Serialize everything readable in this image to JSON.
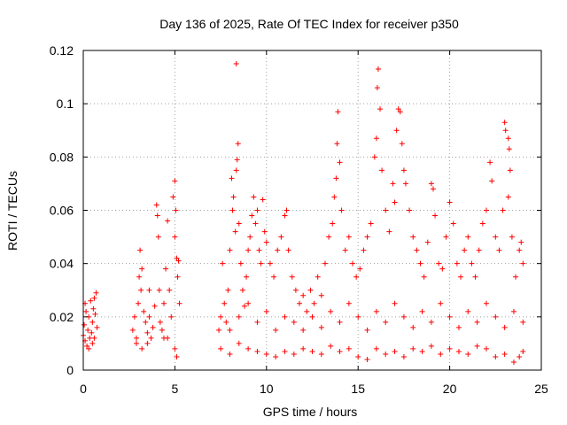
{
  "chart_data": {
    "type": "scatter",
    "title": "Day 136 of 2025, Rate Of TEC Index for receiver p350",
    "xlabel": "GPS time / hours",
    "ylabel": "ROTI / TECUs",
    "xlim": [
      0,
      25
    ],
    "ylim": [
      0,
      0.12
    ],
    "x_ticks": [
      0,
      5,
      10,
      15,
      20,
      25
    ],
    "x_tick_labels": [
      "0",
      "5",
      "10",
      "15",
      "20",
      "25"
    ],
    "y_ticks": [
      0,
      0.02,
      0.04,
      0.06,
      0.08,
      0.1,
      0.12
    ],
    "y_tick_labels": [
      "0",
      "0.02",
      "0.04",
      "0.06",
      "0.08",
      "0.1",
      "0.12"
    ],
    "grid": true,
    "marker": "+",
    "series": [
      {
        "name": "ROTI",
        "color": "#ff0000",
        "points": [
          [
            0.0,
            0.013
          ],
          [
            0.05,
            0.017
          ],
          [
            0.1,
            0.011
          ],
          [
            0.15,
            0.022
          ],
          [
            0.2,
            0.009
          ],
          [
            0.25,
            0.015
          ],
          [
            0.3,
            0.02
          ],
          [
            0.35,
            0.012
          ],
          [
            0.4,
            0.026
          ],
          [
            0.45,
            0.014
          ],
          [
            0.5,
            0.018
          ],
          [
            0.55,
            0.023
          ],
          [
            0.6,
            0.027
          ],
          [
            0.65,
            0.021
          ],
          [
            0.7,
            0.029
          ],
          [
            0.75,
            0.016
          ],
          [
            0.1,
            0.025
          ],
          [
            0.3,
            0.008
          ],
          [
            0.5,
            0.01
          ],
          [
            0.6,
            0.012
          ],
          [
            2.7,
            0.015
          ],
          [
            2.8,
            0.02
          ],
          [
            2.9,
            0.012
          ],
          [
            3.0,
            0.025
          ],
          [
            3.05,
            0.035
          ],
          [
            3.1,
            0.045
          ],
          [
            3.15,
            0.03
          ],
          [
            3.2,
            0.038
          ],
          [
            3.3,
            0.022
          ],
          [
            3.4,
            0.018
          ],
          [
            3.5,
            0.014
          ],
          [
            3.6,
            0.02
          ],
          [
            3.7,
            0.012
          ],
          [
            3.8,
            0.016
          ],
          [
            3.9,
            0.024
          ],
          [
            4.0,
            0.062
          ],
          [
            4.05,
            0.058
          ],
          [
            4.1,
            0.05
          ],
          [
            4.15,
            0.03
          ],
          [
            4.2,
            0.018
          ],
          [
            4.3,
            0.015
          ],
          [
            4.4,
            0.025
          ],
          [
            4.5,
            0.038
          ],
          [
            4.6,
            0.056
          ],
          [
            4.7,
            0.03
          ],
          [
            4.8,
            0.02
          ],
          [
            4.9,
            0.065
          ],
          [
            5.0,
            0.071
          ],
          [
            5.05,
            0.06
          ],
          [
            5.1,
            0.042
          ],
          [
            5.15,
            0.035
          ],
          [
            5.2,
            0.041
          ],
          [
            5.25,
            0.025
          ],
          [
            5.1,
            0.005
          ],
          [
            5.0,
            0.008
          ],
          [
            4.6,
            0.012
          ],
          [
            3.5,
            0.01
          ],
          [
            3.2,
            0.008
          ],
          [
            2.9,
            0.01
          ],
          [
            3.6,
            0.03
          ],
          [
            4.4,
            0.012
          ],
          [
            5.0,
            0.05
          ],
          [
            7.4,
            0.015
          ],
          [
            7.5,
            0.02
          ],
          [
            7.6,
            0.04
          ],
          [
            7.7,
            0.025
          ],
          [
            7.8,
            0.018
          ],
          [
            7.9,
            0.03
          ],
          [
            8.0,
            0.045
          ],
          [
            8.1,
            0.072
          ],
          [
            8.15,
            0.06
          ],
          [
            8.2,
            0.065
          ],
          [
            8.3,
            0.052
          ],
          [
            8.35,
            0.075
          ],
          [
            8.4,
            0.079
          ],
          [
            8.45,
            0.085
          ],
          [
            8.5,
            0.055
          ],
          [
            8.35,
            0.115
          ],
          [
            8.6,
            0.04
          ],
          [
            8.7,
            0.03
          ],
          [
            8.8,
            0.024
          ],
          [
            8.9,
            0.035
          ],
          [
            9.0,
            0.045
          ],
          [
            9.1,
            0.05
          ],
          [
            9.2,
            0.058
          ],
          [
            9.3,
            0.065
          ],
          [
            9.4,
            0.055
          ],
          [
            9.5,
            0.06
          ],
          [
            9.6,
            0.045
          ],
          [
            9.7,
            0.04
          ],
          [
            9.8,
            0.064
          ],
          [
            9.9,
            0.052
          ],
          [
            10.0,
            0.048
          ],
          [
            10.2,
            0.04
          ],
          [
            10.4,
            0.035
          ],
          [
            10.6,
            0.045
          ],
          [
            10.8,
            0.05
          ],
          [
            11.0,
            0.058
          ],
          [
            11.1,
            0.06
          ],
          [
            11.2,
            0.045
          ],
          [
            11.4,
            0.035
          ],
          [
            11.6,
            0.03
          ],
          [
            11.8,
            0.025
          ],
          [
            12.0,
            0.028
          ],
          [
            12.2,
            0.022
          ],
          [
            12.4,
            0.03
          ],
          [
            12.6,
            0.025
          ],
          [
            12.8,
            0.035
          ],
          [
            13.0,
            0.028
          ],
          [
            13.2,
            0.04
          ],
          [
            13.4,
            0.05
          ],
          [
            13.6,
            0.055
          ],
          [
            13.7,
            0.065
          ],
          [
            13.8,
            0.072
          ],
          [
            13.85,
            0.085
          ],
          [
            13.9,
            0.097
          ],
          [
            14.0,
            0.078
          ],
          [
            14.1,
            0.06
          ],
          [
            14.3,
            0.045
          ],
          [
            14.5,
            0.05
          ],
          [
            14.7,
            0.04
          ],
          [
            14.9,
            0.035
          ],
          [
            15.1,
            0.038
          ],
          [
            15.3,
            0.045
          ],
          [
            15.5,
            0.05
          ],
          [
            15.7,
            0.055
          ],
          [
            15.9,
            0.08
          ],
          [
            16.0,
            0.087
          ],
          [
            16.05,
            0.106
          ],
          [
            16.1,
            0.113
          ],
          [
            16.2,
            0.098
          ],
          [
            16.3,
            0.075
          ],
          [
            16.5,
            0.06
          ],
          [
            16.7,
            0.052
          ],
          [
            16.9,
            0.07
          ],
          [
            17.0,
            0.063
          ],
          [
            17.1,
            0.09
          ],
          [
            17.2,
            0.098
          ],
          [
            17.3,
            0.097
          ],
          [
            17.4,
            0.085
          ],
          [
            17.5,
            0.075
          ],
          [
            17.6,
            0.07
          ],
          [
            17.8,
            0.06
          ],
          [
            18.0,
            0.05
          ],
          [
            18.2,
            0.045
          ],
          [
            18.4,
            0.04
          ],
          [
            18.6,
            0.035
          ],
          [
            18.8,
            0.048
          ],
          [
            19.0,
            0.07
          ],
          [
            19.1,
            0.068
          ],
          [
            19.2,
            0.058
          ],
          [
            19.4,
            0.04
          ],
          [
            19.6,
            0.038
          ],
          [
            19.8,
            0.05
          ],
          [
            20.0,
            0.063
          ],
          [
            20.2,
            0.055
          ],
          [
            20.4,
            0.04
          ],
          [
            20.6,
            0.035
          ],
          [
            20.8,
            0.045
          ],
          [
            21.0,
            0.05
          ],
          [
            21.2,
            0.04
          ],
          [
            21.4,
            0.035
          ],
          [
            21.6,
            0.045
          ],
          [
            21.8,
            0.055
          ],
          [
            22.0,
            0.06
          ],
          [
            22.2,
            0.078
          ],
          [
            22.3,
            0.071
          ],
          [
            22.5,
            0.05
          ],
          [
            22.7,
            0.045
          ],
          [
            22.9,
            0.06
          ],
          [
            23.0,
            0.093
          ],
          [
            23.05,
            0.09
          ],
          [
            23.2,
            0.087
          ],
          [
            23.25,
            0.083
          ],
          [
            23.3,
            0.075
          ],
          [
            23.2,
            0.065
          ],
          [
            23.4,
            0.05
          ],
          [
            23.6,
            0.035
          ],
          [
            23.8,
            0.045
          ],
          [
            23.9,
            0.048
          ],
          [
            24.0,
            0.04
          ],
          [
            7.5,
            0.008
          ],
          [
            8.0,
            0.006
          ],
          [
            8.5,
            0.01
          ],
          [
            9.0,
            0.008
          ],
          [
            9.5,
            0.007
          ],
          [
            10.0,
            0.006
          ],
          [
            10.5,
            0.005
          ],
          [
            11.0,
            0.007
          ],
          [
            11.5,
            0.006
          ],
          [
            12.0,
            0.008
          ],
          [
            12.5,
            0.007
          ],
          [
            13.0,
            0.006
          ],
          [
            13.5,
            0.009
          ],
          [
            14.0,
            0.007
          ],
          [
            14.5,
            0.008
          ],
          [
            15.0,
            0.005
          ],
          [
            15.5,
            0.004
          ],
          [
            16.0,
            0.008
          ],
          [
            16.5,
            0.006
          ],
          [
            17.0,
            0.007
          ],
          [
            17.5,
            0.005
          ],
          [
            18.0,
            0.008
          ],
          [
            18.5,
            0.007
          ],
          [
            19.0,
            0.009
          ],
          [
            19.5,
            0.006
          ],
          [
            20.0,
            0.008
          ],
          [
            20.5,
            0.007
          ],
          [
            21.0,
            0.006
          ],
          [
            21.5,
            0.009
          ],
          [
            22.0,
            0.008
          ],
          [
            22.5,
            0.005
          ],
          [
            23.0,
            0.006
          ],
          [
            23.5,
            0.003
          ],
          [
            23.8,
            0.005
          ],
          [
            24.0,
            0.007
          ],
          [
            8.0,
            0.015
          ],
          [
            8.5,
            0.02
          ],
          [
            9.0,
            0.025
          ],
          [
            9.5,
            0.018
          ],
          [
            10.0,
            0.022
          ],
          [
            10.5,
            0.015
          ],
          [
            11.0,
            0.02
          ],
          [
            11.5,
            0.018
          ],
          [
            12.0,
            0.015
          ],
          [
            12.5,
            0.02
          ],
          [
            13.0,
            0.016
          ],
          [
            13.5,
            0.022
          ],
          [
            14.0,
            0.018
          ],
          [
            14.5,
            0.025
          ],
          [
            15.0,
            0.02
          ],
          [
            15.5,
            0.015
          ],
          [
            16.0,
            0.022
          ],
          [
            16.5,
            0.018
          ],
          [
            17.0,
            0.025
          ],
          [
            17.5,
            0.02
          ],
          [
            18.0,
            0.016
          ],
          [
            18.5,
            0.022
          ],
          [
            19.0,
            0.018
          ],
          [
            19.5,
            0.025
          ],
          [
            20.0,
            0.02
          ],
          [
            20.5,
            0.016
          ],
          [
            21.0,
            0.022
          ],
          [
            21.5,
            0.018
          ],
          [
            22.0,
            0.025
          ],
          [
            22.5,
            0.02
          ],
          [
            23.0,
            0.016
          ],
          [
            23.5,
            0.022
          ],
          [
            24.0,
            0.018
          ]
        ]
      }
    ]
  }
}
